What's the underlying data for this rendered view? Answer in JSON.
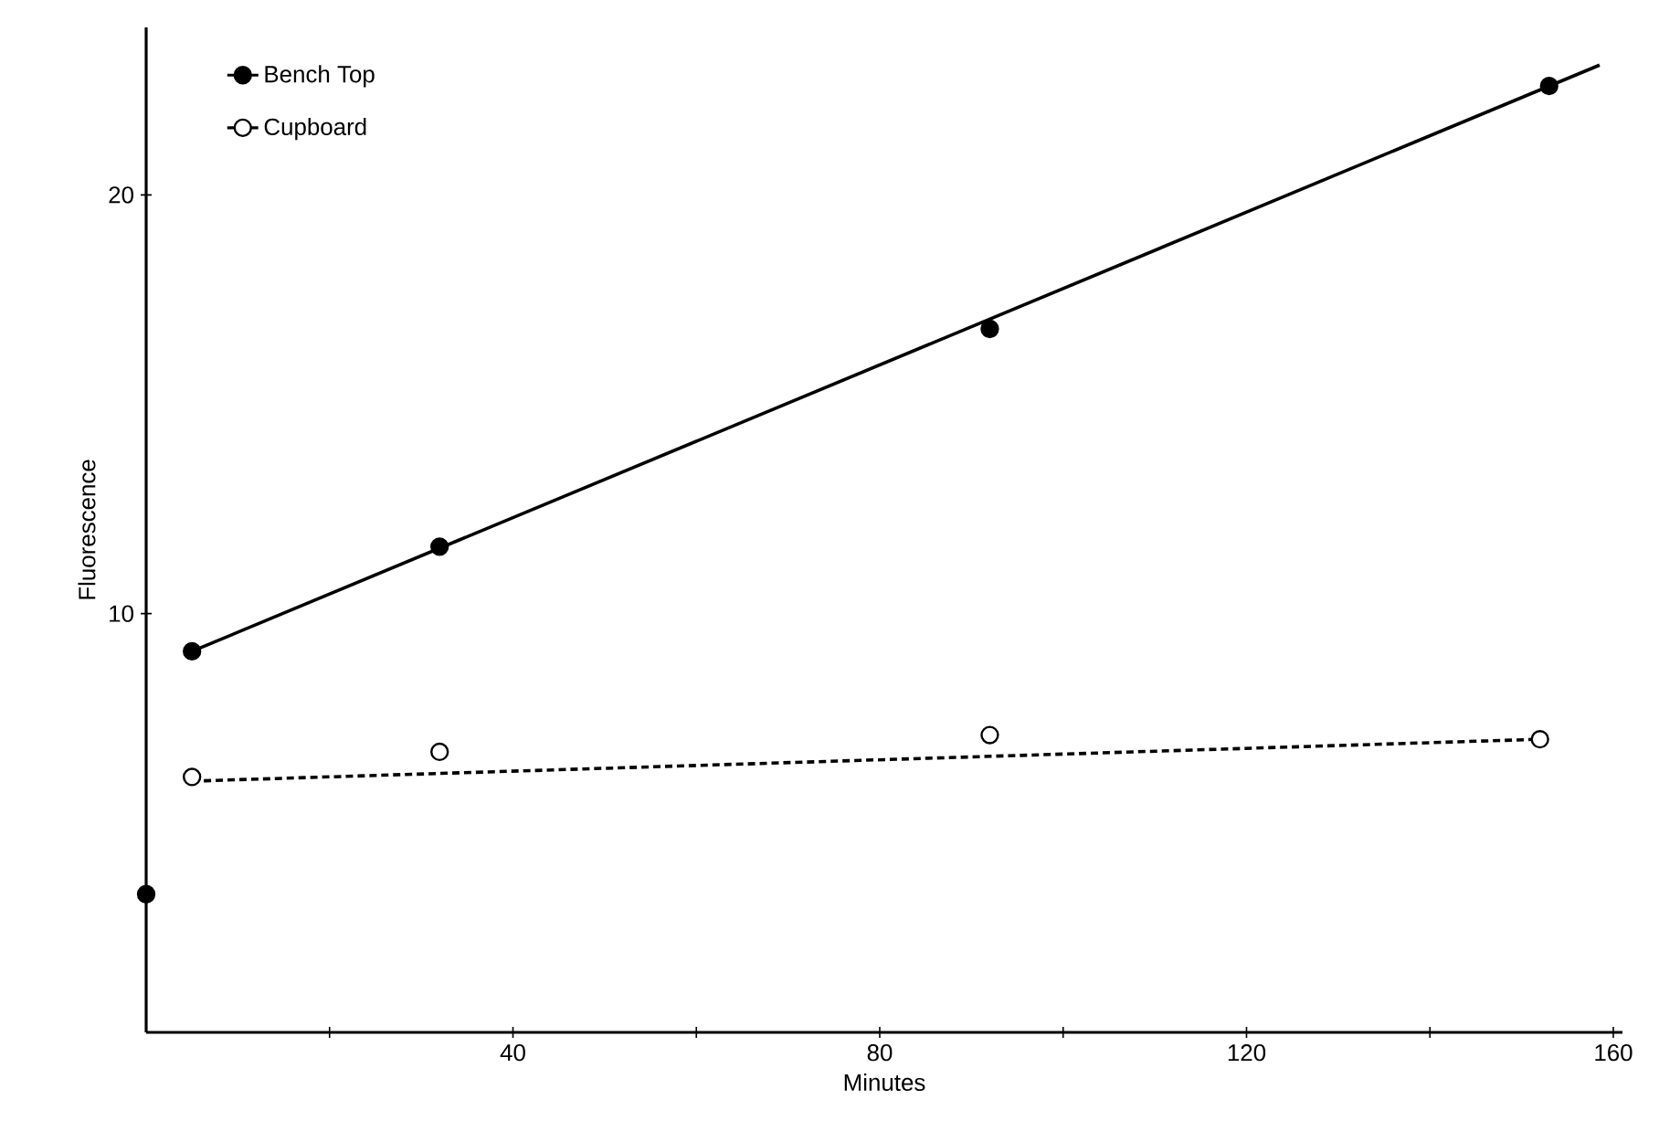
{
  "chart_data": {
    "type": "scatter",
    "xlabel": "Minutes",
    "ylabel": "Fluorescence",
    "xlim": [
      0,
      161
    ],
    "ylim": [
      0,
      24
    ],
    "xticks": [
      {
        "value": 20,
        "label": null
      },
      40,
      {
        "value": 60,
        "label": null
      },
      80,
      {
        "value": 100,
        "label": null
      },
      120,
      {
        "value": 140,
        "label": null
      },
      160
    ],
    "yticks": [
      10,
      20
    ],
    "legend": "top left",
    "grid": false,
    "series": [
      {
        "name": "Bench Top",
        "marker": "circle",
        "line_style": "solid",
        "color": "#000000",
        "x": [
          0,
          5,
          32,
          92,
          153
        ],
        "values": [
          3.3,
          9.1,
          11.6,
          16.8,
          22.6
        ]
      },
      {
        "name": "Cupboard",
        "marker": "circle",
        "line_style": "dashed",
        "color": "#ffffff",
        "x": [
          5,
          32,
          92,
          152
        ],
        "values": [
          6.1,
          6.7,
          7.1,
          7.0
        ]
      },
      {
        "type": "line",
        "marker": "none",
        "line_style": "solid",
        "color": "#000000",
        "x": [
          5,
          158.5
        ],
        "values": [
          9.1,
          23.1
        ]
      },
      {
        "type": "line",
        "marker": "none",
        "line_style": "dashed",
        "color": "#000000",
        "x": [
          5,
          152
        ],
        "values": [
          6.0,
          7.0
        ]
      }
    ]
  }
}
